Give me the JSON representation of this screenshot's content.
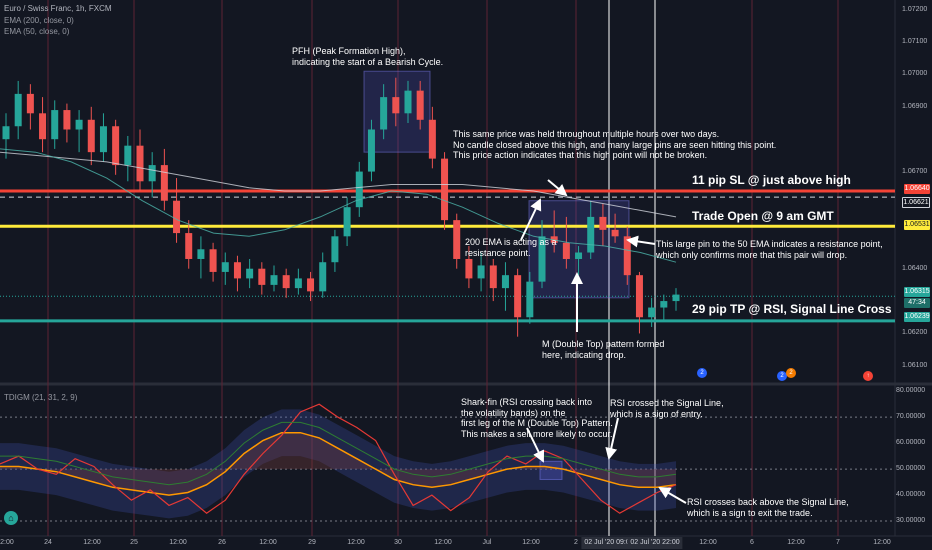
{
  "header": {
    "symbol": "Euro / Swiss Franc, 1h, FXCM",
    "ema200": "EMA (200, close, 0)",
    "ema50": "EMA (50, close, 0)",
    "indicator": "TDIGM (21, 31, 2, 9)"
  },
  "annotations": {
    "pfh": "PFH (Peak Formation High),\nindicating the start of a Bearish Cycle.",
    "held": "This same price was held throughout multiple hours over two days.\nNo candle closed above this high, and many large pins are seen hitting this point.\nThis price action indicates that this high point will not be broken.",
    "sl": "11 pip SL @ just above high",
    "open": "Trade Open @ 9 am GMT",
    "ema200": "200 EMA is acting as a\nresistance point.",
    "pin": "This large pin to the 50 EMA indicates a resistance point,\nwhich only confirms more that this pair will drop.",
    "tp": "29 pip TP @ RSI, Signal Line Cross",
    "mtop": "M (Double Top) pattern formed\nhere, indicating drop.",
    "sharkfin": "Shark-fin (RSI crossing back into\nthe volatility bands) on the\nfirst leg of the M (Double Top) Pattern.\nThis makes a sell more likely to occur.",
    "rsi_signal": "RSI crossed the Signal Line,\nwhich is a sign of entry.",
    "rsi_exit": "RSI crosses back above the Signal Line,\nwhich is a sign to exit the trade."
  },
  "price_tags": {
    "sl": "1.06640",
    "dashed": "1.06621",
    "open": "1.06531",
    "current": "1.06315",
    "countdown": "47:34",
    "tp": "1.06239"
  },
  "time_tags": {
    "left": "02 Jul '20   09:00",
    "right": "02 Jul '20   22:00"
  },
  "events": {
    "e1": "2",
    "e2": "2",
    "e3": "↑"
  },
  "colors": {
    "bg": "#131722",
    "up": "#26a69a",
    "down": "#ef5350",
    "sl": "#f44336",
    "open": "#ffeb3b",
    "tp": "#26a69a",
    "ema200": "#d1d4dc",
    "ema50": "#4db6ac",
    "box": "#5b5bd6"
  },
  "chart_data": [
    {
      "type": "candlestick",
      "title": "Euro / Swiss Franc, 1h, FXCM",
      "y_ticks": [
        "1.07200",
        "1.07100",
        "1.07000",
        "1.06900",
        "1.06700",
        "1.06400",
        "1.06200",
        "1.06100"
      ],
      "ylim": [
        1.0605,
        1.0723
      ],
      "x_ticks": [
        "12:00",
        "24",
        "12:00",
        "25",
        "12:00",
        "26",
        "12:00",
        "29",
        "12:00",
        "30",
        "12:00",
        "Jul",
        "12:00",
        "2",
        "12:00",
        "3",
        "12:00",
        "6",
        "12:00",
        "7",
        "12:00"
      ],
      "ohlc": [
        [
          1.068,
          1.0688,
          1.0674,
          1.0684
        ],
        [
          1.0684,
          1.0698,
          1.068,
          1.0694
        ],
        [
          1.0694,
          1.0697,
          1.0683,
          1.0688
        ],
        [
          1.0688,
          1.0693,
          1.0676,
          1.068
        ],
        [
          1.068,
          1.0692,
          1.0677,
          1.0689
        ],
        [
          1.0689,
          1.0691,
          1.0679,
          1.0683
        ],
        [
          1.0683,
          1.0689,
          1.0676,
          1.0686
        ],
        [
          1.0686,
          1.069,
          1.0672,
          1.0676
        ],
        [
          1.0676,
          1.0688,
          1.0673,
          1.0684
        ],
        [
          1.0684,
          1.0686,
          1.0669,
          1.0672
        ],
        [
          1.0672,
          1.0681,
          1.0667,
          1.0678
        ],
        [
          1.0678,
          1.0683,
          1.0664,
          1.0667
        ],
        [
          1.0667,
          1.0676,
          1.0662,
          1.0672
        ],
        [
          1.0672,
          1.0677,
          1.0658,
          1.0661
        ],
        [
          1.0661,
          1.0668,
          1.0648,
          1.0651
        ],
        [
          1.0651,
          1.0655,
          1.064,
          1.0643
        ],
        [
          1.0643,
          1.065,
          1.0637,
          1.0646
        ],
        [
          1.0646,
          1.0648,
          1.0636,
          1.0639
        ],
        [
          1.0639,
          1.0645,
          1.0635,
          1.0642
        ],
        [
          1.0642,
          1.0644,
          1.0633,
          1.0637
        ],
        [
          1.0637,
          1.0643,
          1.0634,
          1.064
        ],
        [
          1.064,
          1.0642,
          1.0632,
          1.0635
        ],
        [
          1.0635,
          1.0641,
          1.0633,
          1.0638
        ],
        [
          1.0638,
          1.064,
          1.0631,
          1.0634
        ],
        [
          1.0634,
          1.064,
          1.0632,
          1.0637
        ],
        [
          1.0637,
          1.0639,
          1.063,
          1.0633
        ],
        [
          1.0633,
          1.0645,
          1.0631,
          1.0642
        ],
        [
          1.0642,
          1.0652,
          1.0639,
          1.065
        ],
        [
          1.065,
          1.0662,
          1.0647,
          1.0659
        ],
        [
          1.0659,
          1.0673,
          1.0656,
          1.067
        ],
        [
          1.067,
          1.0686,
          1.0667,
          1.0683
        ],
        [
          1.0683,
          1.0697,
          1.068,
          1.0693
        ],
        [
          1.0693,
          1.0699,
          1.0684,
          1.0688
        ],
        [
          1.0688,
          1.0698,
          1.0685,
          1.0695
        ],
        [
          1.0695,
          1.0698,
          1.0683,
          1.0686
        ],
        [
          1.0686,
          1.069,
          1.0671,
          1.0674
        ],
        [
          1.0674,
          1.0676,
          1.0652,
          1.0655
        ],
        [
          1.0655,
          1.0657,
          1.064,
          1.0643
        ],
        [
          1.0643,
          1.0647,
          1.0634,
          1.0637
        ],
        [
          1.0637,
          1.0645,
          1.0633,
          1.0641
        ],
        [
          1.0641,
          1.0643,
          1.063,
          1.0634
        ],
        [
          1.0634,
          1.0642,
          1.0627,
          1.0638
        ],
        [
          1.0638,
          1.064,
          1.0619,
          1.0625
        ],
        [
          1.0625,
          1.0639,
          1.0623,
          1.0636
        ],
        [
          1.0636,
          1.0655,
          1.0634,
          1.065
        ],
        [
          1.065,
          1.0658,
          1.0645,
          1.0648
        ],
        [
          1.0648,
          1.0656,
          1.064,
          1.0643
        ],
        [
          1.0643,
          1.0647,
          1.0638,
          1.0645
        ],
        [
          1.0645,
          1.0661,
          1.0643,
          1.0656
        ],
        [
          1.0656,
          1.066,
          1.0647,
          1.0652
        ],
        [
          1.0652,
          1.0657,
          1.0648,
          1.065
        ],
        [
          1.065,
          1.0653,
          1.0635,
          1.0638
        ],
        [
          1.0638,
          1.0639,
          1.062,
          1.0625
        ],
        [
          1.0625,
          1.0631,
          1.0622,
          1.0628
        ],
        [
          1.0628,
          1.0632,
          1.0624,
          1.063
        ],
        [
          1.063,
          1.0634,
          1.0627,
          1.0632
        ]
      ],
      "series": [
        {
          "name": "EMA (200, close, 0)",
          "values": [
            1.0676,
            1.0675,
            1.0674,
            1.0673,
            1.0671,
            1.0669,
            1.0667,
            1.0665,
            1.0664,
            1.0664,
            1.0665,
            1.0666,
            1.0666,
            1.0666,
            1.0665,
            1.0664,
            1.0662,
            1.066,
            1.0658,
            1.0656
          ]
        },
        {
          "name": "EMA (50, close, 0)",
          "values": [
            1.0677,
            1.0676,
            1.0673,
            1.0668,
            1.0661,
            1.0655,
            1.0651,
            1.065,
            1.0652,
            1.0656,
            1.0661,
            1.0664,
            1.0663,
            1.0659,
            1.0654,
            1.065,
            1.0648,
            1.0647,
            1.0645,
            1.0642
          ]
        }
      ]
    },
    {
      "type": "line",
      "title": "TDIGM (21, 31, 2, 9)",
      "y_ticks": [
        "80.00000",
        "70.00000",
        "60.00000",
        "50.00000",
        "40.00000",
        "30.00000"
      ],
      "ylim": [
        25,
        82
      ],
      "series": [
        {
          "name": "RSI",
          "values": [
            52,
            55,
            50,
            48,
            54,
            51,
            44,
            38,
            42,
            36,
            39,
            33,
            38,
            48,
            56,
            63,
            72,
            75,
            70,
            66,
            61,
            48,
            36,
            40,
            34,
            39,
            49,
            55,
            52,
            57,
            54,
            46,
            38,
            33,
            37,
            41,
            44
          ]
        },
        {
          "name": "Signal Line",
          "values": [
            51,
            51,
            50,
            49,
            47,
            45,
            43,
            42,
            41,
            40,
            41,
            44,
            49,
            56,
            61,
            64,
            64,
            62,
            58,
            54,
            50,
            46,
            44,
            43,
            44,
            46,
            48,
            50,
            51,
            51,
            50,
            48,
            46,
            44,
            43,
            43,
            44
          ]
        }
      ]
    }
  ]
}
